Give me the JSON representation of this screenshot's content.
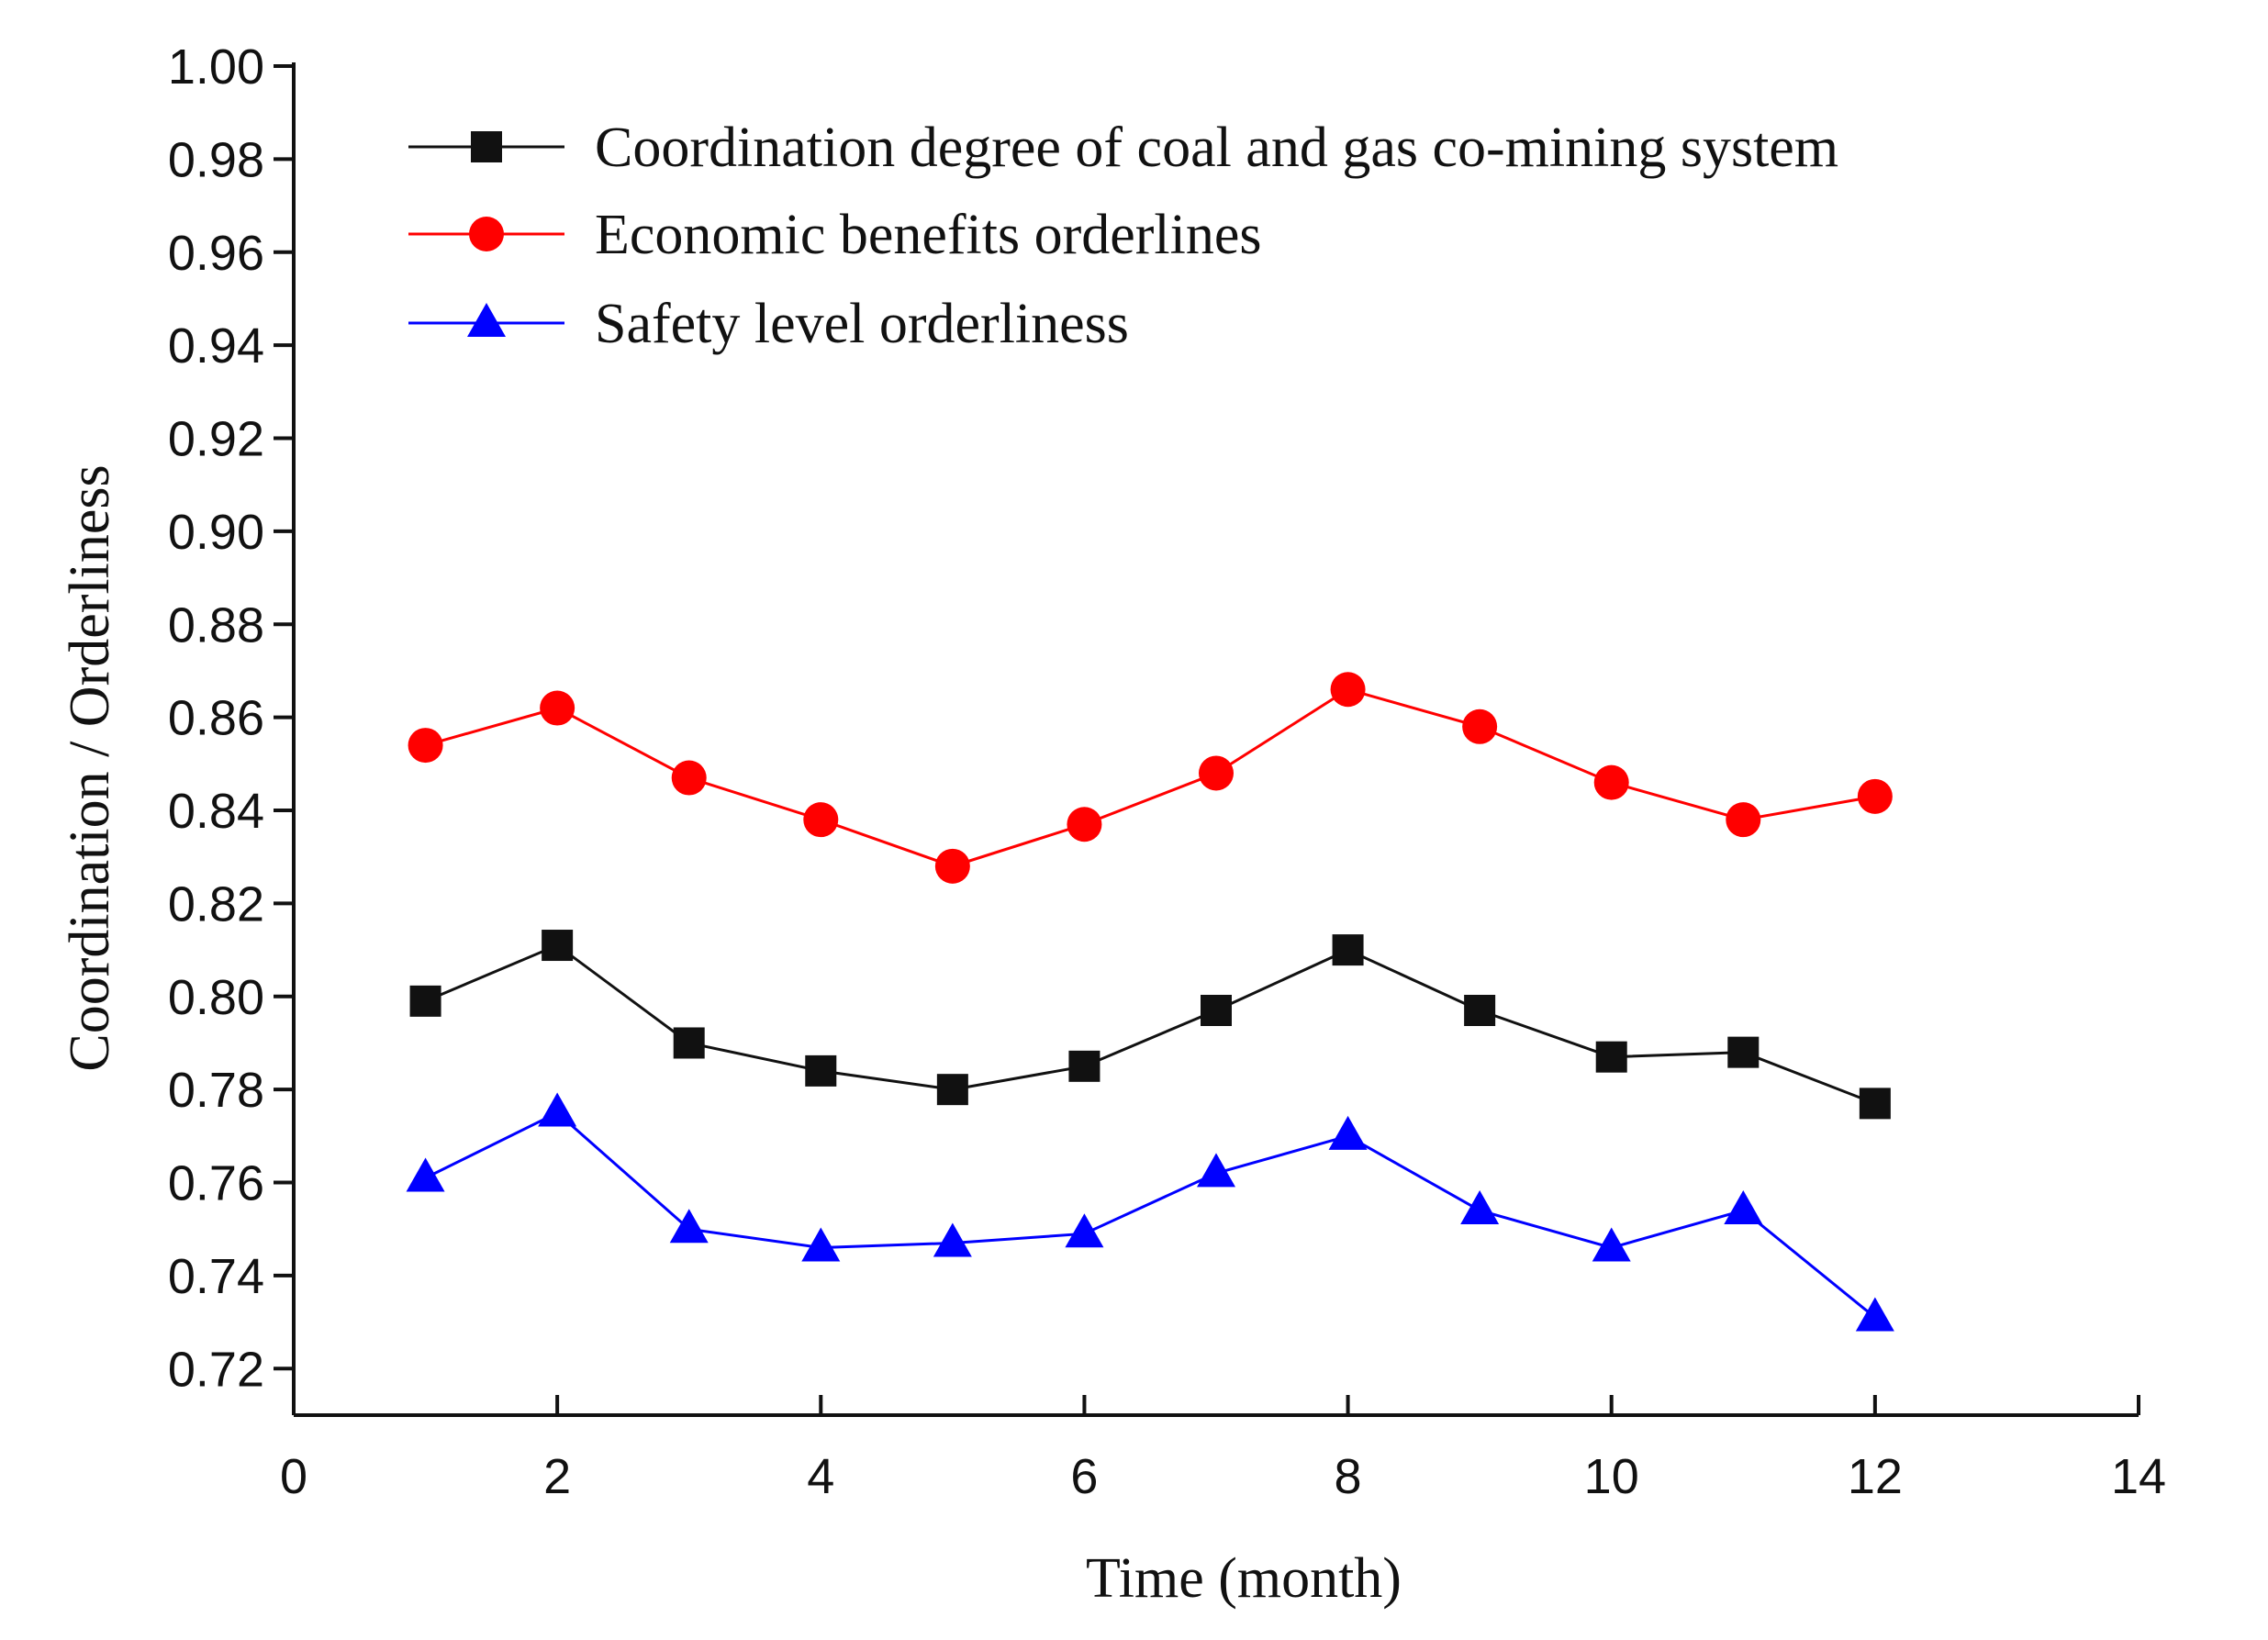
{
  "chart_data": {
    "type": "line",
    "title": "",
    "xlabel": "Time (month)",
    "ylabel": "Coordination / Orderliness",
    "xlim": [
      0,
      14
    ],
    "ylim": [
      0.71,
      1.0
    ],
    "xticks": [
      0,
      2,
      4,
      6,
      8,
      10,
      12,
      14
    ],
    "xtick_labels": [
      "0",
      "2",
      "4",
      "6",
      "8",
      "10",
      "12",
      "14"
    ],
    "yticks": [
      0.72,
      0.74,
      0.76,
      0.78,
      0.8,
      0.82,
      0.84,
      0.86,
      0.88,
      0.9,
      0.92,
      0.94,
      0.96,
      0.98,
      1.0
    ],
    "ytick_labels": [
      "0.72",
      "0.74",
      "0.76",
      "0.78",
      "0.80",
      "0.82",
      "0.84",
      "0.86",
      "0.88",
      "0.90",
      "0.92",
      "0.94",
      "0.96",
      "0.98",
      "1.00"
    ],
    "grid": false,
    "legend_position": "top-right",
    "x": [
      1,
      2,
      3,
      4,
      5,
      6,
      7,
      8,
      9,
      10,
      11,
      12
    ],
    "series": [
      {
        "name": "Coordination degree of coal and gas co-mining system",
        "color": "#111111",
        "marker": "square",
        "values": [
          0.799,
          0.811,
          0.79,
          0.784,
          0.78,
          0.785,
          0.797,
          0.81,
          0.797,
          0.787,
          0.788,
          0.777
        ]
      },
      {
        "name": "Economic benefits orderlines",
        "color": "#ff0000",
        "marker": "circle",
        "values": [
          0.854,
          0.862,
          0.847,
          0.838,
          0.828,
          0.837,
          0.848,
          0.866,
          0.858,
          0.846,
          0.838,
          0.843
        ]
      },
      {
        "name": "Safety level orderliness",
        "color": "#0000ff",
        "marker": "triangle",
        "values": [
          0.761,
          0.775,
          0.75,
          0.746,
          0.747,
          0.749,
          0.762,
          0.77,
          0.754,
          0.746,
          0.754,
          0.731
        ]
      }
    ]
  }
}
